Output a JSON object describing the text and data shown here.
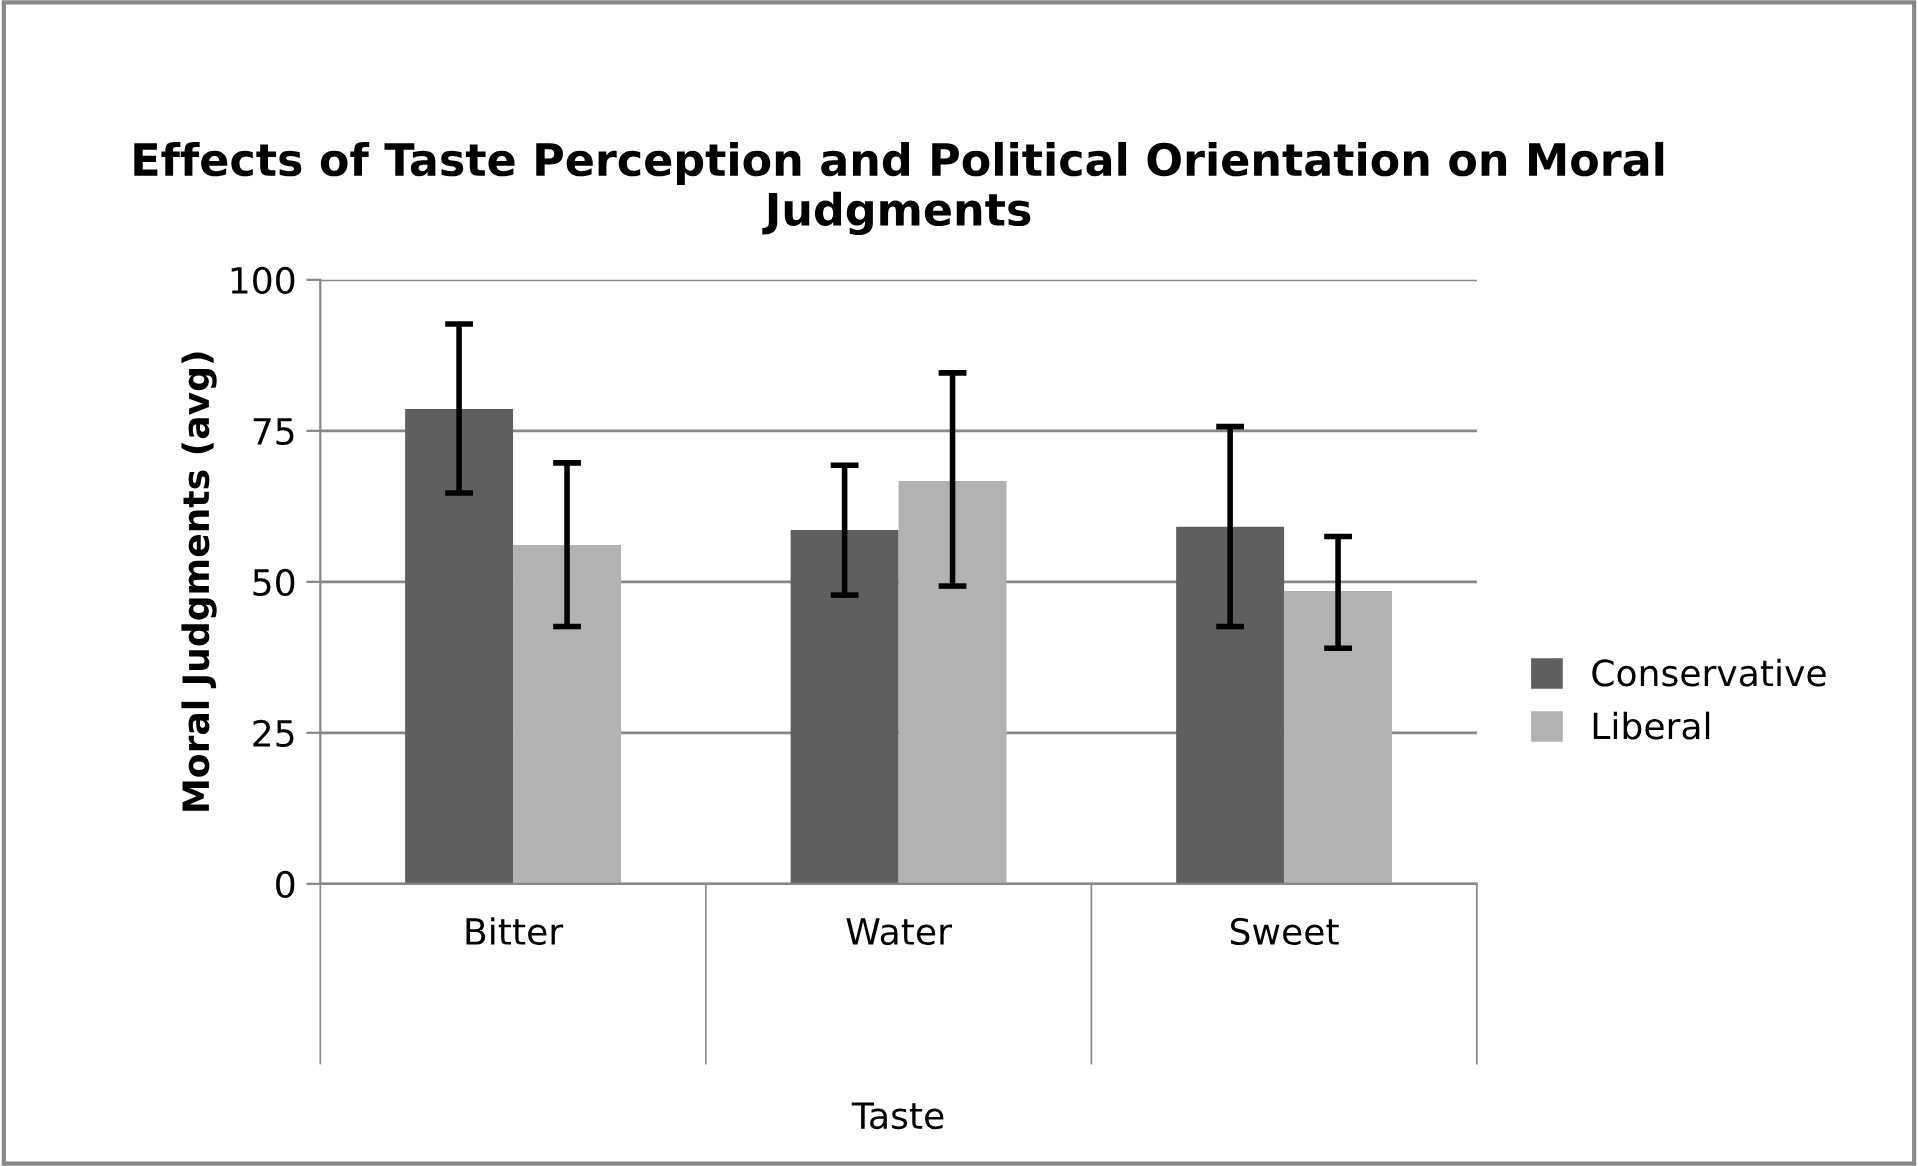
{
  "chart_data": {
    "type": "bar",
    "title": "Effects of Taste Perception and Political Orientation on Moral Judgments",
    "xlabel": "Taste",
    "ylabel": "Moral Judgments (avg)",
    "categories": [
      "Bitter",
      "Water",
      "Sweet"
    ],
    "series": [
      {
        "name": "Conservative",
        "color": "#5f5f5f",
        "values": [
          78.6,
          58.6,
          59.1
        ],
        "errors": [
          [
            64.7,
            92.7
          ],
          [
            47.8,
            69.3
          ],
          [
            42.6,
            75.7
          ]
        ]
      },
      {
        "name": "Liberal",
        "color": "#b2b2b2",
        "values": [
          56.1,
          66.7,
          48.5
        ],
        "errors": [
          [
            42.6,
            69.7
          ],
          [
            49.3,
            84.6
          ],
          [
            39.0,
            57.5
          ]
        ]
      }
    ],
    "ylim": [
      0,
      100
    ],
    "yticks": [
      0,
      25,
      50,
      75,
      100
    ],
    "grid": "y",
    "legend": "right"
  }
}
